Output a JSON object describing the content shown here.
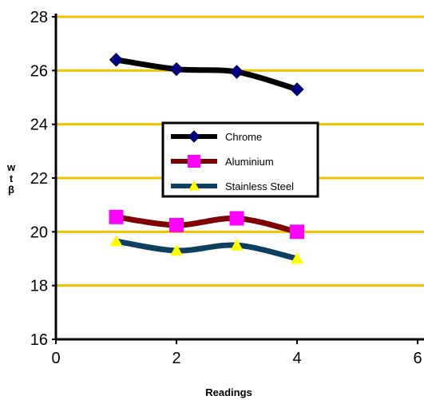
{
  "chart_data": {
    "type": "line",
    "title": "",
    "xlabel": "Readings",
    "ylabel": "w t β",
    "ylabel_chars": [
      "w",
      "t",
      "β"
    ],
    "xlim": [
      0,
      6
    ],
    "ylim": [
      16,
      28
    ],
    "x_ticks": [
      "0",
      "2",
      "4",
      "6"
    ],
    "y_ticks": [
      "16",
      "18",
      "20",
      "22",
      "24",
      "26",
      "28"
    ],
    "grid": "horizontal",
    "grid_color": "#F2C200",
    "legend_position": "center",
    "series": [
      {
        "name": "Chrome",
        "color": "#000000",
        "marker_color": "#000080",
        "marker": "diamond",
        "x": [
          1,
          2,
          3,
          4
        ],
        "y": [
          26.4,
          26.05,
          25.95,
          25.3
        ]
      },
      {
        "name": "Aluminium",
        "color": "#7F0000",
        "marker_color": "#FF00FF",
        "marker": "square",
        "x": [
          1,
          2,
          3,
          4
        ],
        "y": [
          20.55,
          20.25,
          20.5,
          20.0
        ]
      },
      {
        "name": "Stainless Steel",
        "color": "#0F3F60",
        "marker_color": "#FFFF00",
        "marker": "triangle",
        "x": [
          1,
          2,
          3,
          4
        ],
        "y": [
          19.65,
          19.3,
          19.5,
          19.0
        ]
      }
    ]
  }
}
